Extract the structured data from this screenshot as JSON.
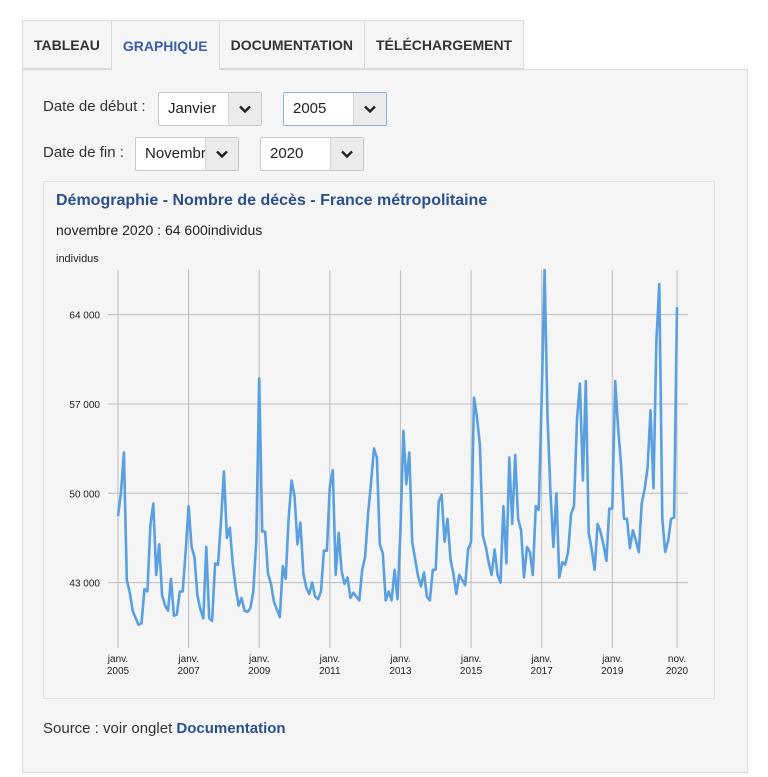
{
  "tabs": [
    {
      "label": "TABLEAU"
    },
    {
      "label": "GRAPHIQUE"
    },
    {
      "label": "DOCUMENTATION"
    },
    {
      "label": "TÉLÉCHARGEMENT"
    }
  ],
  "filters": {
    "start_label": "Date de début :",
    "start_month": "Janvier",
    "start_year": "2005",
    "end_label": "Date de fin :",
    "end_month": "Novembre",
    "end_year": "2020"
  },
  "chart_data": {
    "type": "line",
    "title": "Démographie - Nombre de décès - France métropolitaine",
    "subtitle": "novembre 2020 : 64 600individus",
    "ylabel": "individus",
    "ylim": [
      38500,
      67500
    ],
    "yticks": [
      43000,
      50000,
      57000,
      64000
    ],
    "ytick_labels": [
      "43 000",
      "50 000",
      "57 000",
      "64 000"
    ],
    "xticks": [
      {
        "pos": 0,
        "line1": "janv.",
        "line2": "2005"
      },
      {
        "pos": 24,
        "line1": "janv.",
        "line2": "2007"
      },
      {
        "pos": 48,
        "line1": "janv.",
        "line2": "2009"
      },
      {
        "pos": 72,
        "line1": "janv.",
        "line2": "2011"
      },
      {
        "pos": 96,
        "line1": "janv.",
        "line2": "2013"
      },
      {
        "pos": 120,
        "line1": "janv.",
        "line2": "2015"
      },
      {
        "pos": 144,
        "line1": "janv.",
        "line2": "2017"
      },
      {
        "pos": 168,
        "line1": "janv.",
        "line2": "2019"
      },
      {
        "pos": 190,
        "line1": "nov.",
        "line2": "2020"
      }
    ],
    "grid": true,
    "series": [
      {
        "color": "#5aa0e0",
        "values": [
          48200,
          50000,
          53200,
          43200,
          42200,
          40800,
          40200,
          39700,
          39800,
          42500,
          42300,
          47500,
          49200,
          43600,
          46000,
          42000,
          41200,
          40800,
          43300,
          40400,
          40500,
          42300,
          42300,
          45500,
          49000,
          45800,
          45000,
          42000,
          40900,
          40200,
          45800,
          40200,
          40000,
          44500,
          44400,
          47800,
          51700,
          46500,
          47300,
          44500,
          42600,
          41200,
          41800,
          40800,
          40700,
          41000,
          42300,
          46300,
          59000,
          47000,
          47000,
          43700,
          42900,
          41500,
          40900,
          40300,
          44300,
          43300,
          48000,
          51000,
          49800,
          46000,
          47700,
          43700,
          42600,
          42100,
          43000,
          41900,
          41700,
          42300,
          45500,
          45500,
          50500,
          51800,
          43600,
          46900,
          43900,
          42900,
          43400,
          41800,
          42200,
          41900,
          41600,
          44000,
          45000,
          48400,
          50800,
          53500,
          52800,
          46000,
          45300,
          41600,
          42300,
          41600,
          44000,
          41700,
          47000,
          54900,
          50700,
          53200,
          46200,
          44800,
          43500,
          42700,
          43800,
          41900,
          41600,
          44000,
          44000,
          49300,
          49900,
          46200,
          48000,
          44800,
          43700,
          42100,
          43600,
          43200,
          42800,
          45600,
          46200,
          57500,
          56000,
          53800,
          46700,
          45800,
          44600,
          43600,
          45600,
          43600,
          43000,
          49000,
          44500,
          52800,
          47600,
          53000,
          48000,
          47100,
          43400,
          45800,
          45400,
          43600,
          49000,
          48700,
          57500,
          67500,
          56000,
          50000,
          45800,
          50000,
          43400,
          44600,
          44400,
          45400,
          48400,
          49000,
          55800,
          58600,
          51000,
          58800,
          46900,
          45600,
          44000,
          47600,
          47000,
          46000,
          44700,
          48800,
          48800,
          58800,
          55000,
          52200,
          48000,
          48000,
          45700,
          47100,
          46300,
          45400,
          49200,
          50300,
          52000,
          56500,
          50400,
          62000,
          66400,
          48000,
          45400,
          46300,
          48000,
          48100,
          64600
        ]
      }
    ]
  },
  "source": {
    "prefix": "Source : voir onglet",
    "link": "Documentation"
  }
}
